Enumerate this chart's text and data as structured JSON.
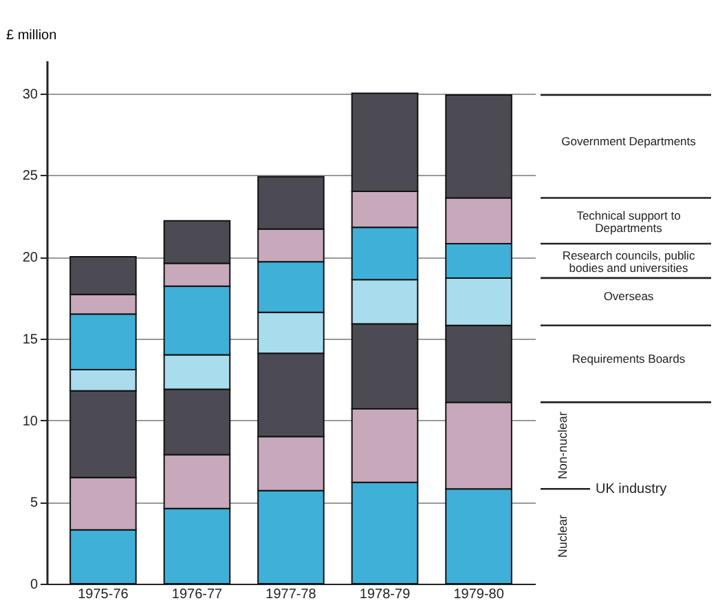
{
  "chart_data": {
    "type": "bar",
    "stacked": true,
    "ylabel": "£ million",
    "categories": [
      "1975-76",
      "1976-77",
      "1977-78",
      "1978-79",
      "1979-80"
    ],
    "series": [
      {
        "name": "Nuclear",
        "color": "#3fb0d8",
        "values": [
          3.3,
          4.6,
          5.7,
          6.2,
          5.8
        ]
      },
      {
        "name": "Non-nuclear",
        "color": "#c7a9bb",
        "values": [
          3.2,
          3.3,
          3.3,
          4.5,
          5.3
        ]
      },
      {
        "name": "Requirements Boards",
        "color": "#4c4a52",
        "values": [
          5.3,
          4.0,
          5.1,
          5.2,
          4.7
        ]
      },
      {
        "name": "Overseas",
        "color": "#a9dcec",
        "values": [
          1.3,
          2.1,
          2.5,
          2.7,
          2.9
        ]
      },
      {
        "name": "Research councils, public bodies and universities",
        "color": "#3fb0d8",
        "values": [
          3.4,
          4.2,
          3.1,
          3.2,
          2.1
        ]
      },
      {
        "name": "Technical support to Departments",
        "color": "#c7a9bb",
        "values": [
          1.2,
          1.4,
          2.0,
          2.2,
          2.8
        ]
      },
      {
        "name": "Government Departments",
        "color": "#4c4a52",
        "values": [
          2.3,
          2.6,
          3.2,
          6.0,
          6.3
        ]
      }
    ],
    "annotations": [
      "UK industry"
    ],
    "ylim": [
      0,
      32
    ],
    "yticks": [
      0,
      5,
      10,
      15,
      20,
      25,
      30
    ],
    "grid": "y"
  }
}
